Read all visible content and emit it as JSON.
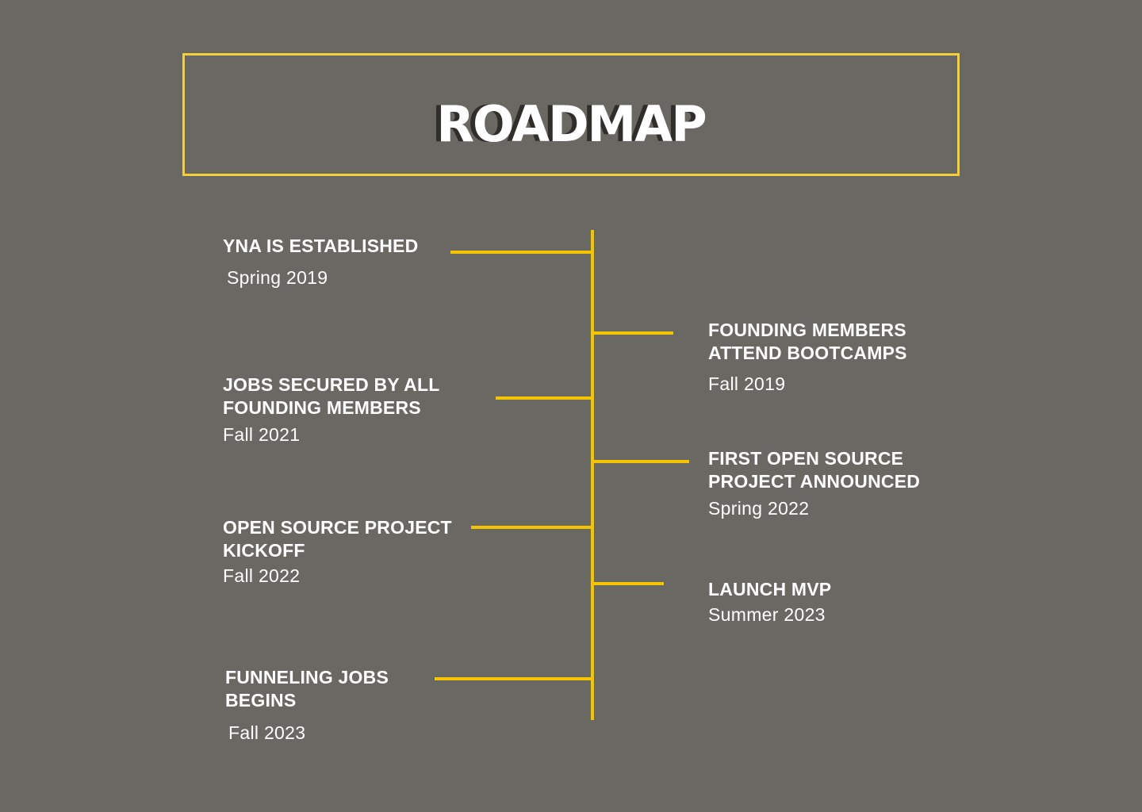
{
  "title": "ROADMAP",
  "colors": {
    "background": "#6a6862",
    "accent": "#f5c400",
    "frame": "#f5cf3b",
    "text": "#ffffff",
    "title_shadow": "#2f2e2b"
  },
  "milestones": [
    {
      "heading": "YNA IS ESTABLISHED",
      "date": "Spring 2019",
      "side": "left"
    },
    {
      "heading": "FOUNDING MEMBERS\nATTEND BOOTCAMPS",
      "date": "Fall 2019",
      "side": "right"
    },
    {
      "heading": "JOBS SECURED BY ALL\nFOUNDING MEMBERS",
      "date": "Fall 2021",
      "side": "left"
    },
    {
      "heading": "FIRST OPEN SOURCE\nPROJECT ANNOUNCED",
      "date": "Spring 2022",
      "side": "right"
    },
    {
      "heading": "OPEN SOURCE PROJECT\nKICKOFF",
      "date": "Fall 2022",
      "side": "left"
    },
    {
      "heading": "LAUNCH MVP",
      "date": "Summer 2023",
      "side": "right"
    },
    {
      "heading": "FUNNELING JOBS\nBEGINS",
      "date": "Fall 2023",
      "side": "left"
    }
  ]
}
